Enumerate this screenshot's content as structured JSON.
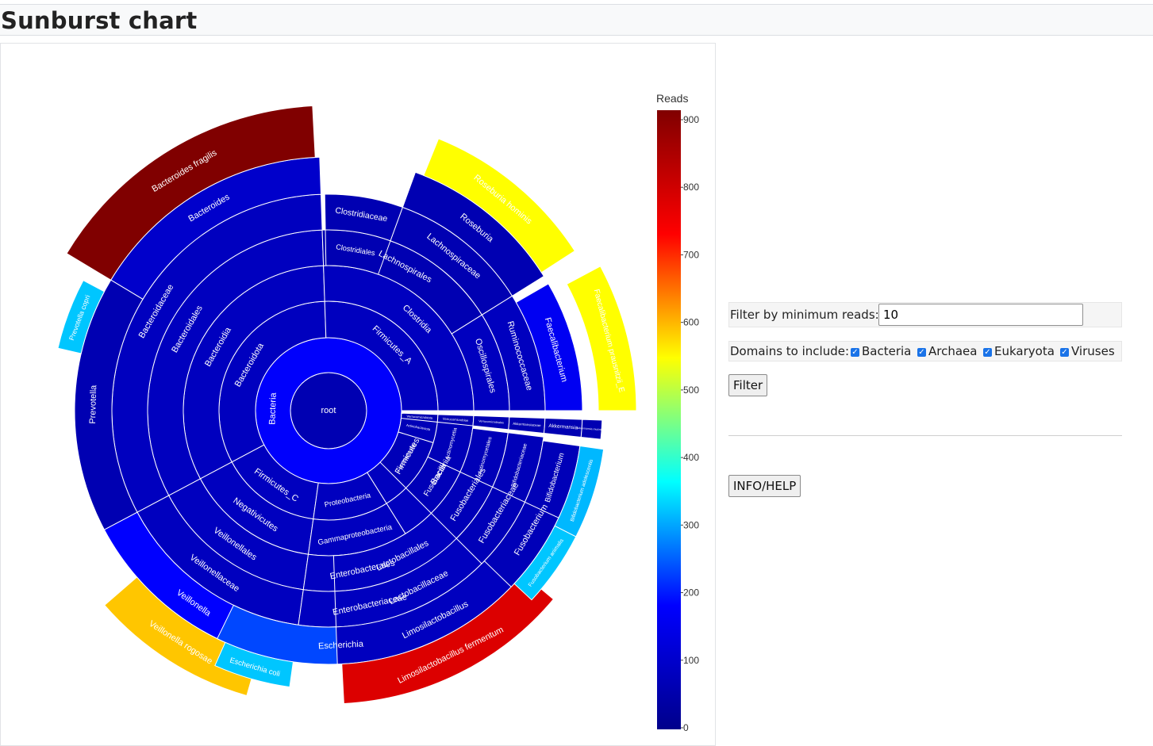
{
  "header": {
    "title": "Sunburst chart"
  },
  "controls": {
    "min_reads_label": "Filter by minimum reads:",
    "min_reads_value": "10",
    "domains_label": "Domains to include:",
    "domains": [
      {
        "label": "Bacteria",
        "checked": true
      },
      {
        "label": "Archaea",
        "checked": true
      },
      {
        "label": "Eukaryota",
        "checked": true
      },
      {
        "label": "Viruses",
        "checked": true
      }
    ],
    "filter_button": "Filter",
    "info_button": "INFO/HELP"
  },
  "chart_data": {
    "type": "sunburst",
    "colorbar": {
      "title": "Reads",
      "min": 0,
      "max": 900,
      "ticks": [
        0,
        100,
        200,
        300,
        400,
        500,
        600,
        700,
        800,
        900
      ],
      "colorscale": [
        "#00008b",
        "#0000ff",
        "#00ffff",
        "#ffff00",
        "#ff0000",
        "#800000"
      ]
    },
    "root": "root",
    "nodes": [
      {
        "label": "root",
        "parent": "",
        "reads": 60
      },
      {
        "label": "Bacteria",
        "parent": "root",
        "reads": 175
      },
      {
        "label": "Bacteroidota",
        "parent": "Bacteria",
        "reads": 80
      },
      {
        "label": "Bacteroidia",
        "parent": "Bacteroidota",
        "reads": 80
      },
      {
        "label": "Bacteroidales",
        "parent": "Bacteroidia",
        "reads": 80
      },
      {
        "label": "Bacteroidaceae",
        "parent": "Bacteroidales",
        "reads": 80
      },
      {
        "label": "Bacteroides",
        "parent": "Bacteroidaceae",
        "reads": 100
      },
      {
        "label": "Bacteroides fragilis",
        "parent": "Bacteroides",
        "reads": 900
      },
      {
        "label": "Prevotella",
        "parent": "Bacteroidales",
        "reads": 60
      },
      {
        "label": "Prevotella copri",
        "parent": "Prevotella",
        "reads": 320
      },
      {
        "label": "Firmicutes_A",
        "parent": "Bacteria",
        "reads": 80
      },
      {
        "label": "Clostridia",
        "parent": "Firmicutes_A",
        "reads": 80
      },
      {
        "label": "Lachnospirales",
        "parent": "Clostridia",
        "reads": 60
      },
      {
        "label": "Lachnospiraceae",
        "parent": "Lachnospirales",
        "reads": 60
      },
      {
        "label": "Roseburia",
        "parent": "Lachnospiraceae",
        "reads": 60
      },
      {
        "label": "Roseburia hominis",
        "parent": "Roseburia",
        "reads": 540
      },
      {
        "label": "Oscillospirales",
        "parent": "Clostridia",
        "reads": 80
      },
      {
        "label": "Ruminococcaceae",
        "parent": "Oscillospirales",
        "reads": 80
      },
      {
        "label": "Faecalibacterium",
        "parent": "Ruminococcaceae",
        "reads": 160
      },
      {
        "label": "Faecalibacterium prausnitzii_E",
        "parent": "Faecalibacterium",
        "reads": 540
      },
      {
        "label": "Firmicutes_C",
        "parent": "Bacteria",
        "reads": 80
      },
      {
        "label": "Negativicutes",
        "parent": "Firmicutes_C",
        "reads": 80
      },
      {
        "label": "Veillonellales",
        "parent": "Negativicutes",
        "reads": 80
      },
      {
        "label": "Veillonellaceae",
        "parent": "Veillonellales",
        "reads": 80
      },
      {
        "label": "Veillonella",
        "parent": "Veillonellaceae",
        "reads": 180
      },
      {
        "label": "Veillonella rogosae",
        "parent": "Veillonella",
        "reads": 580
      },
      {
        "label": "Proteobacteria",
        "parent": "Bacteria",
        "reads": 80
      },
      {
        "label": "Gammaproteobacteria",
        "parent": "Proteobacteria",
        "reads": 80
      },
      {
        "label": "Enterobacterales",
        "parent": "Gammaproteobacteria",
        "reads": 80
      },
      {
        "label": "Enterobacteriaceae",
        "parent": "Enterobacterales",
        "reads": 80
      },
      {
        "label": "Escherichia",
        "parent": "Enterobacteriaceae",
        "reads": 230
      },
      {
        "label": "Escherichia coli",
        "parent": "Escherichia",
        "reads": 320
      },
      {
        "label": "Firmicutes",
        "parent": "Bacteria",
        "reads": 80
      },
      {
        "label": "Bacilli",
        "parent": "Firmicutes",
        "reads": 80
      },
      {
        "label": "Lactobacillales",
        "parent": "Bacilli",
        "reads": 80
      },
      {
        "label": "Lactobacillaceae",
        "parent": "Lactobacillales",
        "reads": 80
      },
      {
        "label": "Limosilactobacillus",
        "parent": "Lactobacillaceae",
        "reads": 80
      },
      {
        "label": "Limosilactobacillus fermentum",
        "parent": "Limosilactobacillus",
        "reads": 770
      },
      {
        "label": "Fusobacteriota",
        "parent": "Bacteria",
        "reads": 70
      },
      {
        "label": "Fusobacteriia",
        "parent": "Fusobacteriota",
        "reads": 70
      },
      {
        "label": "Fusobacteriales",
        "parent": "Fusobacteriia",
        "reads": 70
      },
      {
        "label": "Fusobacteriaceae",
        "parent": "Fusobacteriales",
        "reads": 70
      },
      {
        "label": "Fusobacterium",
        "parent": "Fusobacteriaceae",
        "reads": 70
      },
      {
        "label": "Fusobacterium animalis",
        "parent": "Fusobacterium",
        "reads": 320
      },
      {
        "label": "Actinobacteriota",
        "parent": "Bacteria",
        "reads": 70
      },
      {
        "label": "Actinomycetia",
        "parent": "Actinobacteriota",
        "reads": 70
      },
      {
        "label": "Actinomycetales",
        "parent": "Actinomycetia",
        "reads": 70
      },
      {
        "label": "Bifidobacteriaceae",
        "parent": "Actinomycetales",
        "reads": 70
      },
      {
        "label": "Bifidobacterium",
        "parent": "Bifidobacteriaceae",
        "reads": 70
      },
      {
        "label": "Bifidobacterium adolescentis",
        "parent": "Bifidobacterium",
        "reads": 310
      },
      {
        "label": "Verrucomicrobiota",
        "parent": "Bacteria",
        "reads": 60
      },
      {
        "label": "Verrucomicrobiae",
        "parent": "Verrucomicrobiota",
        "reads": 60
      },
      {
        "label": "Verrucomicrobiales",
        "parent": "Verrucomicrobiae",
        "reads": 60
      },
      {
        "label": "Akkermansiaceae",
        "parent": "Verrucomicrobiales",
        "reads": 60
      },
      {
        "label": "Akkermansia",
        "parent": "Akkermansiaceae",
        "reads": 60
      },
      {
        "label": "Akkermansia muciniphila",
        "parent": "Akkermansia",
        "reads": 60
      },
      {
        "label": "Clostridiales",
        "parent": "Clostridia",
        "reads": 60
      },
      {
        "label": "Clostridiaceae",
        "parent": "Clostridiales",
        "reads": 60
      }
    ]
  }
}
